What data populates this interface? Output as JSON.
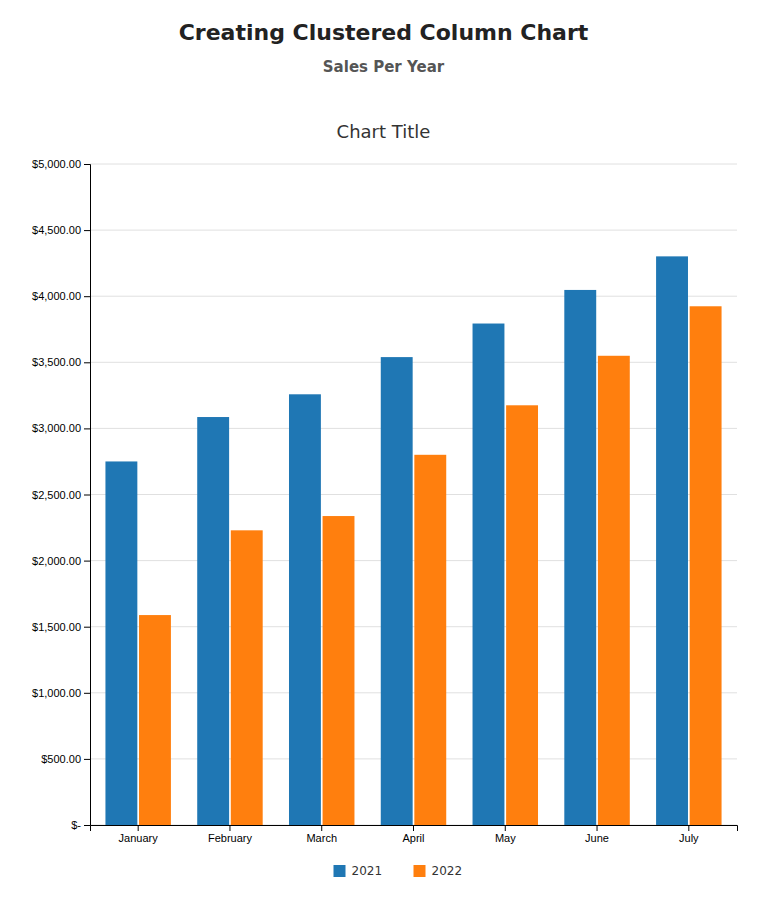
{
  "chart_data": {
    "type": "bar",
    "title": "Chart Title",
    "annotations": [
      "Creating Clustered Column Chart",
      "Sales Per Year"
    ],
    "categories": [
      "January",
      "February",
      "March",
      "April",
      "May",
      "June",
      "July"
    ],
    "series": [
      {
        "name": "2021",
        "values": [
          2750.0,
          3086.0,
          3258.0,
          3539.33,
          3793.33,
          4047.33,
          4301.33
        ]
      },
      {
        "name": "2022",
        "values": [
          1588.0,
          2229.0,
          2337.0,
          2800.33,
          3174.83,
          3549.33,
          3923.83
        ]
      }
    ],
    "ylim": [
      0,
      5000
    ],
    "yticks": [
      {
        "value": 0,
        "label": "$-"
      },
      {
        "value": 500,
        "label": "$500.00"
      },
      {
        "value": 1000,
        "label": "$1,000.00"
      },
      {
        "value": 1500,
        "label": "$1,500.00"
      },
      {
        "value": 2000,
        "label": "$2,000.00"
      },
      {
        "value": 2500,
        "label": "$2,500.00"
      },
      {
        "value": 3000,
        "label": "$3,000.00"
      },
      {
        "value": 3500,
        "label": "$3,500.00"
      },
      {
        "value": 4000,
        "label": "$4,000.00"
      },
      {
        "value": 4500,
        "label": "$4,500.00"
      },
      {
        "value": 5000,
        "label": "$5,000.00"
      }
    ],
    "grid": true,
    "legend": "bottom"
  }
}
